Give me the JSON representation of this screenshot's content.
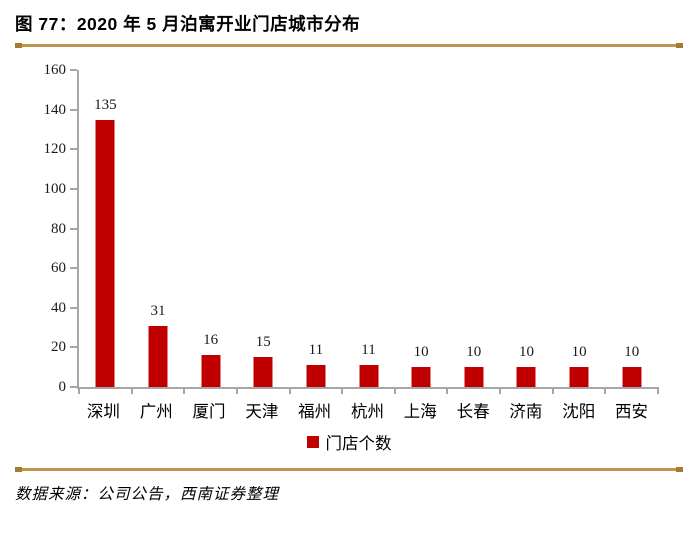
{
  "figure": {
    "title": "图 77：2020 年 5 月泊寓开业门店城市分布",
    "source": "数据来源：公司公告，西南证券整理"
  },
  "legend": {
    "label": "门店个数"
  },
  "colors": {
    "bar": "#C00000",
    "rule_gold": "#C0944E",
    "rule_cap": "#A67C2E",
    "axis_gray": "#A6A6A6",
    "text": "#000000"
  },
  "chart_data": {
    "type": "bar",
    "title": "2020 年 5 月泊寓开业门店城市分布",
    "categories": [
      "深圳",
      "广州",
      "厦门",
      "天津",
      "福州",
      "杭州",
      "上海",
      "长春",
      "济南",
      "沈阳",
      "西安"
    ],
    "values": [
      135,
      31,
      16,
      15,
      11,
      11,
      10,
      10,
      10,
      10,
      10
    ],
    "series_name": "门店个数",
    "xlabel": "",
    "ylabel": "",
    "ylim": [
      0,
      160
    ],
    "yticks": [
      0,
      20,
      40,
      60,
      80,
      100,
      120,
      140,
      160
    ],
    "grid": false,
    "legend_position": "bottom",
    "data_labels": true
  }
}
